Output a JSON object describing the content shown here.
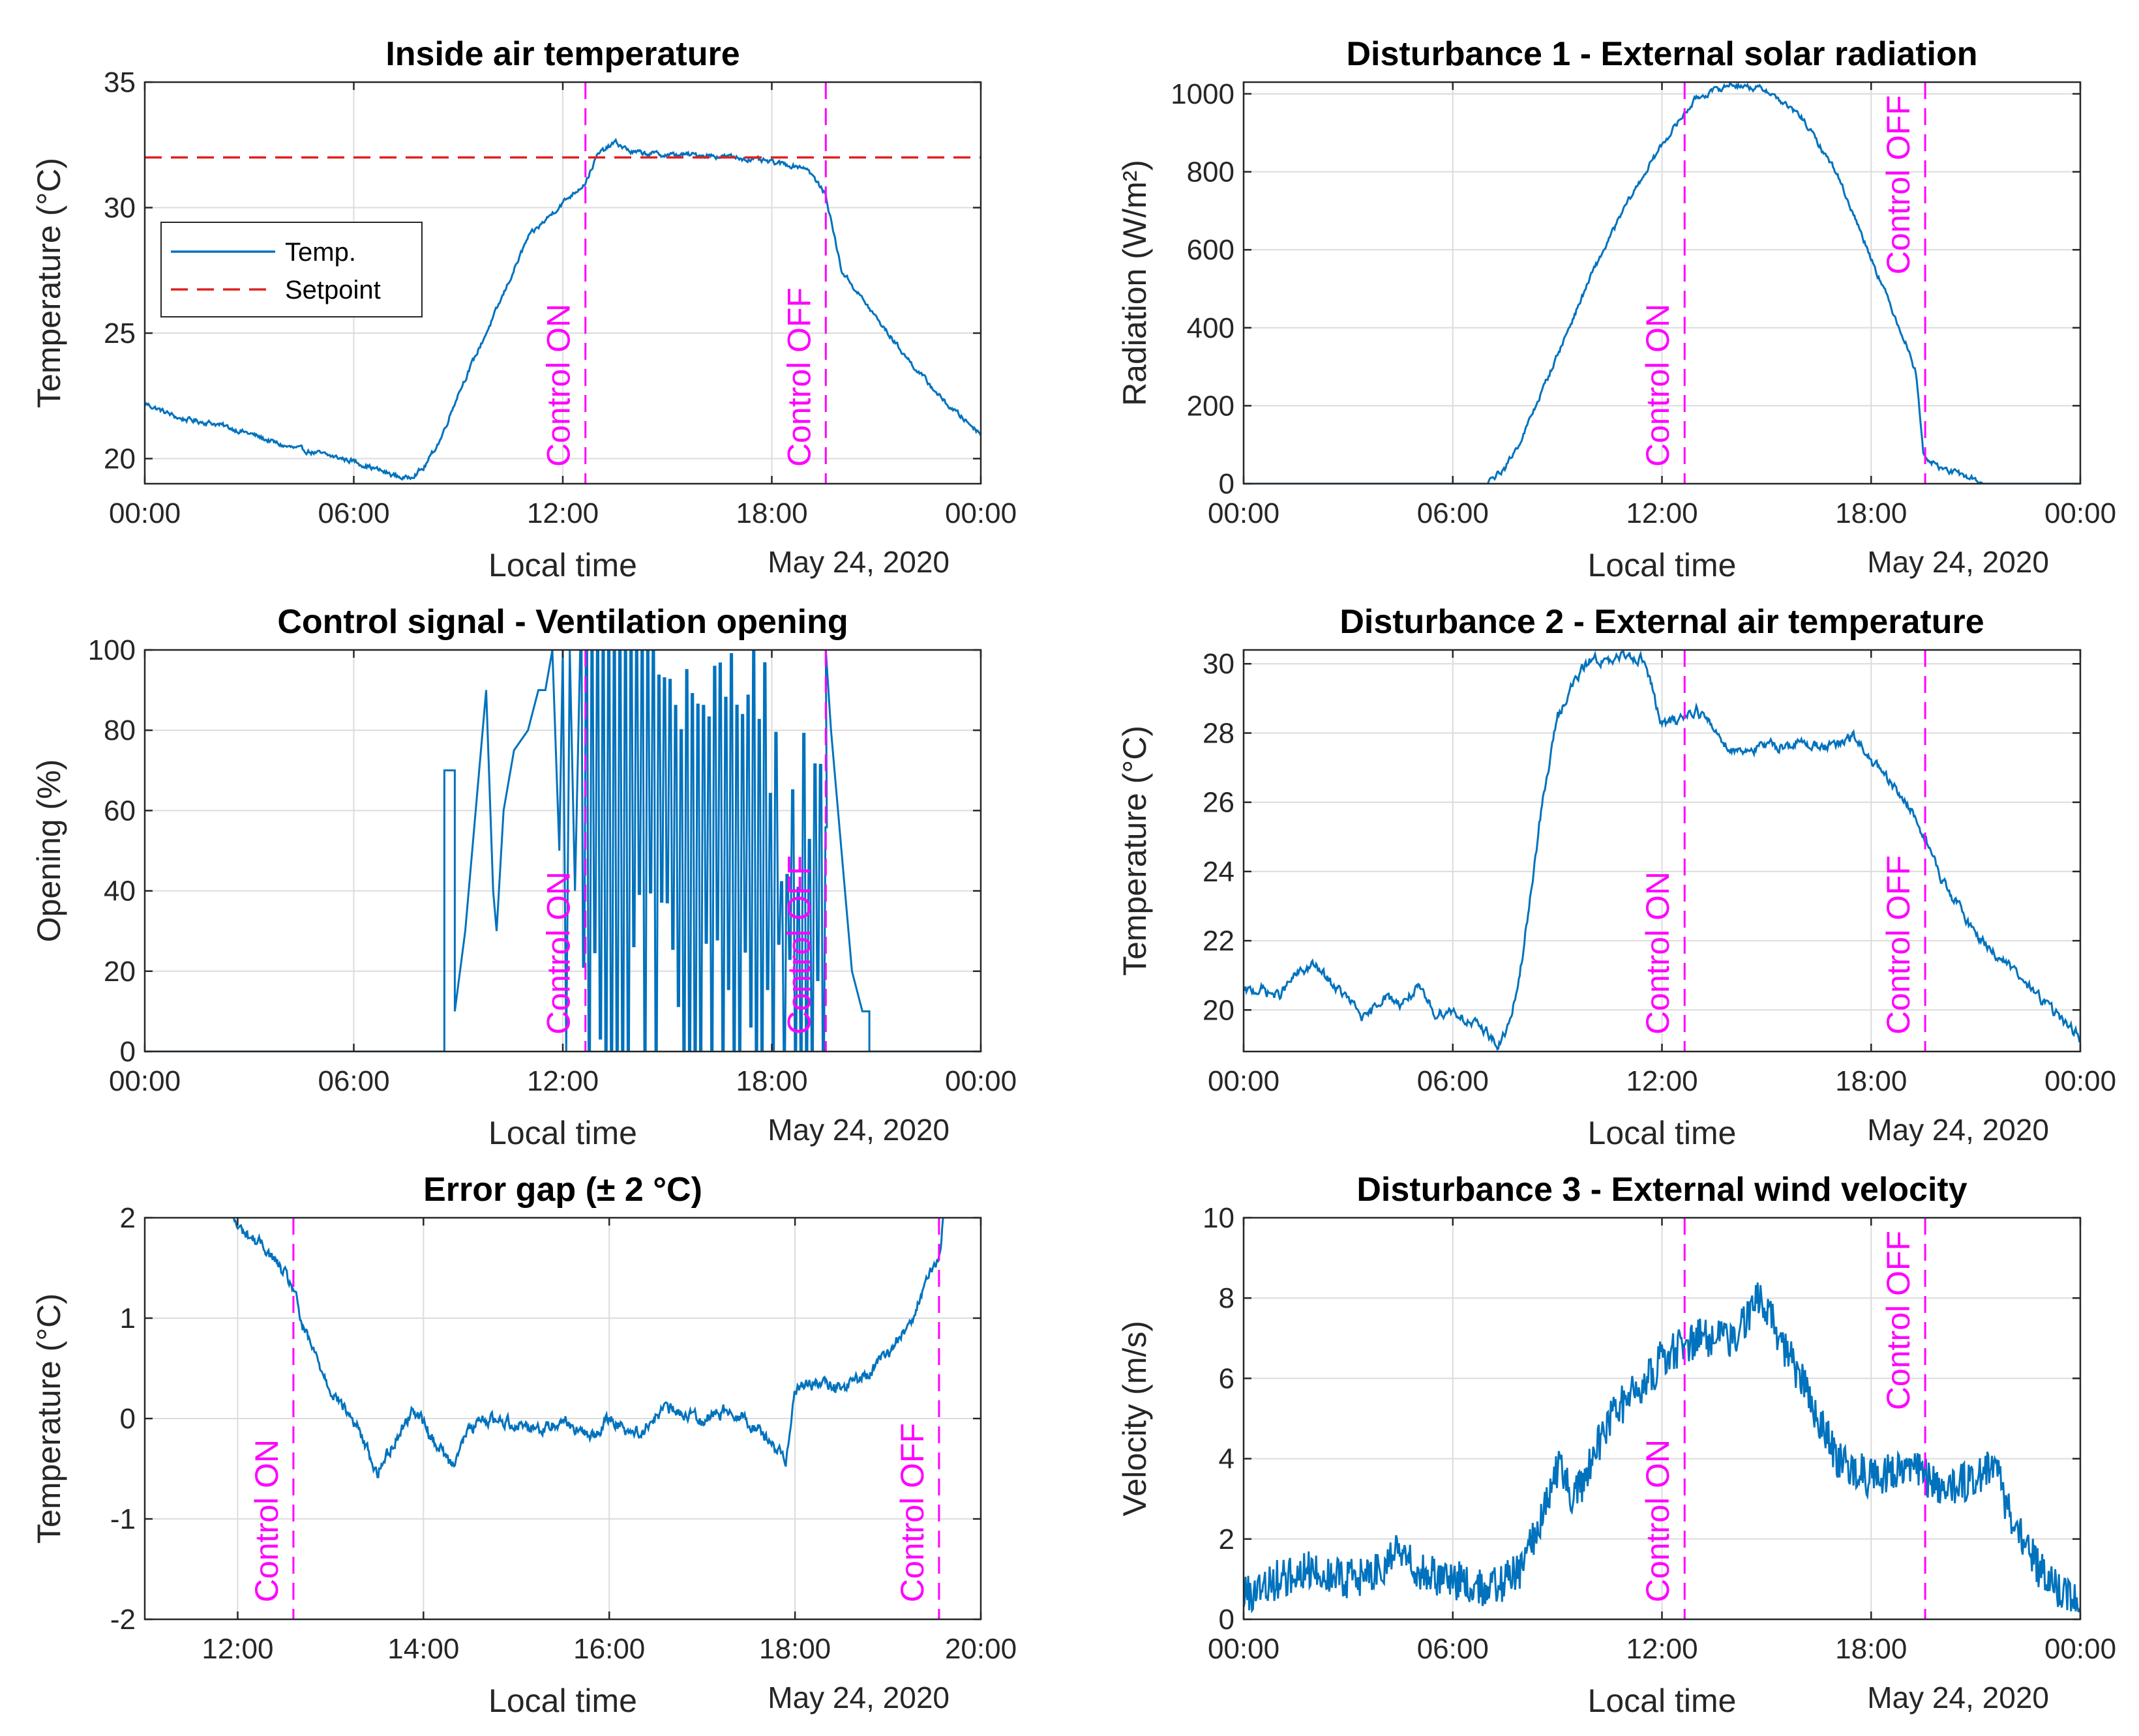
{
  "figure": {
    "date_label": "May 24, 2020",
    "xlabel": "Local time",
    "control_on_label": "Control ON",
    "control_off_label": "Control OFF"
  },
  "colors": {
    "series": "#0072bd",
    "setpoint": "#e02020",
    "control": "#ff00ff",
    "grid": "#dcdcdc",
    "axis": "#262626"
  },
  "chart_data": [
    {
      "id": "inside-air",
      "type": "line",
      "title": "Inside air temperature",
      "ylabel": "Temperature (°C)",
      "xlabel": "Local time",
      "date_label": "May 24, 2020",
      "xlim": [
        0,
        24
      ],
      "ylim": [
        19,
        35
      ],
      "xticks": [
        0,
        6,
        12,
        18,
        24
      ],
      "xticklabels": [
        "00:00",
        "06:00",
        "12:00",
        "18:00",
        "00:00"
      ],
      "yticks": [
        20,
        25,
        30,
        35
      ],
      "yticklabels": [
        "20",
        "25",
        "30",
        "35"
      ],
      "control_on": 12.65,
      "control_off": 19.55,
      "control_label_pos": "bottom",
      "setpoint": 32,
      "legend": {
        "entries": [
          "Temp.",
          "Setpoint"
        ],
        "location": "upper-left"
      },
      "series": [
        {
          "name": "Temp.",
          "x": [
            0,
            1,
            2,
            3,
            4,
            5,
            6,
            7,
            7.5,
            8,
            8.5,
            9,
            10,
            11,
            12,
            12.65,
            13,
            13.5,
            14,
            15,
            16,
            17,
            18,
            19,
            19.55,
            20,
            21,
            22,
            23,
            24
          ],
          "y": [
            22.2,
            21.6,
            21.4,
            21.0,
            20.5,
            20.2,
            19.9,
            19.4,
            19.2,
            19.6,
            20.8,
            22.6,
            25.6,
            28.8,
            30.2,
            31.0,
            32.1,
            32.6,
            32.2,
            32.1,
            32.1,
            32.0,
            31.8,
            31.6,
            30.5,
            27.5,
            25.6,
            23.8,
            22.2,
            21.0
          ],
          "noise": 0.08
        }
      ]
    },
    {
      "id": "solar-radiation",
      "type": "line",
      "title": "Disturbance 1 - External solar radiation",
      "ylabel": "Radiation (W/m²)",
      "xlabel": "Local time",
      "date_label": "May 24, 2020",
      "xlim": [
        0,
        24
      ],
      "ylim": [
        0,
        1030
      ],
      "xticks": [
        0,
        6,
        12,
        18,
        24
      ],
      "xticklabels": [
        "00:00",
        "06:00",
        "12:00",
        "18:00",
        "00:00"
      ],
      "yticks": [
        0,
        200,
        400,
        600,
        800,
        1000
      ],
      "yticklabels": [
        "0",
        "200",
        "400",
        "600",
        "800",
        "1000"
      ],
      "control_on": 12.65,
      "control_off": 19.55,
      "control_label_pos": "middle-top",
      "series": [
        {
          "name": "Radiation",
          "x": [
            0,
            7.0,
            7.1,
            7.5,
            8,
            9,
            10,
            11,
            12,
            12.65,
            13,
            14,
            15,
            16,
            17,
            18,
            19,
            19.3,
            19.4,
            19.5,
            20,
            21,
            21.2,
            24
          ],
          "y": [
            0,
            0,
            10,
            40,
            120,
            330,
            540,
            720,
            870,
            950,
            990,
            1025,
            1010,
            940,
            800,
            580,
            360,
            280,
            180,
            70,
            40,
            10,
            0,
            0
          ],
          "noise": 6
        }
      ]
    },
    {
      "id": "ventilation",
      "type": "line",
      "title": "Control signal - Ventilation opening",
      "ylabel": "Opening (%)",
      "xlabel": "Local time",
      "date_label": "May 24, 2020",
      "xlim": [
        0,
        24
      ],
      "ylim": [
        0,
        100
      ],
      "xticks": [
        0,
        6,
        12,
        18,
        24
      ],
      "xticklabels": [
        "00:00",
        "06:00",
        "12:00",
        "18:00",
        "00:00"
      ],
      "yticks": [
        0,
        20,
        40,
        60,
        80,
        100
      ],
      "yticklabels": [
        "0",
        "20",
        "40",
        "60",
        "80",
        "100"
      ],
      "control_on": 12.65,
      "control_off": 19.55,
      "control_label_pos": "bottom",
      "series": [
        {
          "name": "Opening",
          "x": [
            0,
            8.6,
            8.6,
            8.9,
            8.9,
            9.2,
            9.4,
            9.6,
            9.8,
            10.0,
            10.1,
            10.3,
            10.6,
            11.0,
            11.3,
            11.5,
            11.7,
            11.9,
            12.0,
            12.1,
            12.2,
            12.35,
            12.5,
            19.55,
            19.7,
            19.9,
            20.1,
            20.3,
            20.6,
            20.8,
            20.8,
            24
          ],
          "y": [
            0,
            0,
            70,
            70,
            10,
            30,
            50,
            70,
            90,
            40,
            30,
            60,
            75,
            80,
            90,
            90,
            100,
            50,
            100,
            0,
            100,
            40,
            100,
            100,
            80,
            60,
            40,
            20,
            10,
            10,
            0,
            0
          ],
          "oscillation": {
            "start": 12.5,
            "end": 19.55,
            "step": 0.08
          }
        }
      ]
    },
    {
      "id": "external-air",
      "type": "line",
      "title": "Disturbance 2 - External air temperature",
      "ylabel": "Temperature (°C)",
      "xlabel": "Local time",
      "date_label": "May 24, 2020",
      "xlim": [
        0,
        24
      ],
      "ylim": [
        18.8,
        30.4
      ],
      "xticks": [
        0,
        6,
        12,
        18,
        24
      ],
      "xticklabels": [
        "00:00",
        "06:00",
        "12:00",
        "18:00",
        "00:00"
      ],
      "yticks": [
        20,
        22,
        24,
        26,
        28,
        30
      ],
      "yticklabels": [
        "20",
        "22",
        "24",
        "26",
        "28",
        "30"
      ],
      "control_on": 12.65,
      "control_off": 19.55,
      "control_label_pos": "bottom",
      "series": [
        {
          "name": "External temperature",
          "x": [
            0,
            0.5,
            1,
            1.5,
            2,
            2.5,
            3,
            3.5,
            4,
            4.5,
            5,
            5.5,
            6,
            6.5,
            7,
            7.3,
            7.7,
            8,
            8.5,
            9,
            9.5,
            10,
            10.5,
            11,
            11.5,
            12,
            12.65,
            13,
            14,
            15,
            16,
            17,
            17.5,
            18,
            19,
            19.55,
            20,
            21,
            22,
            23,
            24
          ],
          "y": [
            20.5,
            20.6,
            20.4,
            21.0,
            21.3,
            20.8,
            20.3,
            19.7,
            20.4,
            20.2,
            20.6,
            19.9,
            20.0,
            19.6,
            19.4,
            18.9,
            19.8,
            21.5,
            25.5,
            28.5,
            29.5,
            30.2,
            30.0,
            30.3,
            30.1,
            28.2,
            28.5,
            28.7,
            27.5,
            27.6,
            27.7,
            27.6,
            27.9,
            27.2,
            26.0,
            25.0,
            23.8,
            22.2,
            21.2,
            20.2,
            19.2
          ],
          "noise": 0.12
        }
      ]
    },
    {
      "id": "error-gap",
      "type": "line",
      "title": "Error gap (± 2 °C)",
      "ylabel": "Temperature (°C)",
      "xlabel": "Local time",
      "date_label": "May 24, 2020",
      "xlim": [
        11,
        20
      ],
      "ylim": [
        -2,
        2
      ],
      "xticks": [
        12,
        14,
        16,
        18,
        20
      ],
      "xticklabels": [
        "12:00",
        "14:00",
        "16:00",
        "18:00",
        "20:00"
      ],
      "yticks": [
        -2,
        -1,
        0,
        1,
        2
      ],
      "yticklabels": [
        "-2",
        "-1",
        "0",
        "1",
        "2"
      ],
      "control_on": 12.6,
      "control_off": 19.55,
      "control_label_pos": "bottom",
      "series": [
        {
          "name": "Error",
          "x": [
            11.95,
            12.0,
            12.3,
            12.6,
            12.7,
            13.0,
            13.3,
            13.5,
            13.7,
            13.9,
            14.1,
            14.3,
            14.5,
            14.7,
            15.0,
            15.3,
            15.5,
            15.8,
            16.0,
            16.3,
            16.6,
            17.0,
            17.3,
            17.6,
            17.8,
            17.9,
            18.0,
            18.2,
            18.5,
            18.8,
            19.0,
            19.2,
            19.4,
            19.55,
            19.6
          ],
          "y": [
            2.0,
            1.9,
            1.7,
            1.3,
            0.9,
            0.3,
            -0.1,
            -0.55,
            -0.2,
            0.1,
            -0.2,
            -0.45,
            -0.1,
            0.0,
            -0.05,
            -0.1,
            0.0,
            -0.2,
            0.0,
            -0.15,
            0.1,
            0.0,
            0.1,
            -0.1,
            -0.3,
            -0.4,
            0.3,
            0.35,
            0.3,
            0.45,
            0.65,
            0.9,
            1.3,
            1.6,
            2.0
          ],
          "noise": 0.05
        }
      ]
    },
    {
      "id": "wind-velocity",
      "type": "line",
      "title": "Disturbance 3 - External wind velocity",
      "ylabel": "Velocity (m/s)",
      "xlabel": "Local time",
      "date_label": "May 24, 2020",
      "xlim": [
        0,
        24
      ],
      "ylim": [
        0,
        10
      ],
      "xticks": [
        0,
        6,
        12,
        18,
        24
      ],
      "xticklabels": [
        "00:00",
        "06:00",
        "12:00",
        "18:00",
        "00:00"
      ],
      "yticks": [
        0,
        2,
        4,
        6,
        8,
        10
      ],
      "yticklabels": [
        "0",
        "2",
        "4",
        "6",
        "8",
        "10"
      ],
      "control_on": 12.65,
      "control_off": 19.55,
      "control_label_pos": "split",
      "series": [
        {
          "name": "Wind",
          "x": [
            0,
            1,
            2,
            3,
            4,
            4.4,
            5,
            6,
            7,
            8,
            8.5,
            9,
            9.5,
            10,
            10.5,
            11,
            11.5,
            12,
            12.65,
            13,
            14,
            14.8,
            15.5,
            16,
            17,
            18,
            19,
            19.55,
            20,
            21,
            21.5,
            22,
            23,
            24
          ],
          "y": [
            0.6,
            1.0,
            1.3,
            1.0,
            1.2,
            1.8,
            1.2,
            1.0,
            0.7,
            1.2,
            2.5,
            3.8,
            3.0,
            4.0,
            5.0,
            5.5,
            5.8,
            6.5,
            6.8,
            7.0,
            7.0,
            8.0,
            6.8,
            6.0,
            4.0,
            3.5,
            3.8,
            3.6,
            3.2,
            3.5,
            4.0,
            2.5,
            1.0,
            0.4
          ],
          "noise": 0.5
        }
      ]
    }
  ]
}
